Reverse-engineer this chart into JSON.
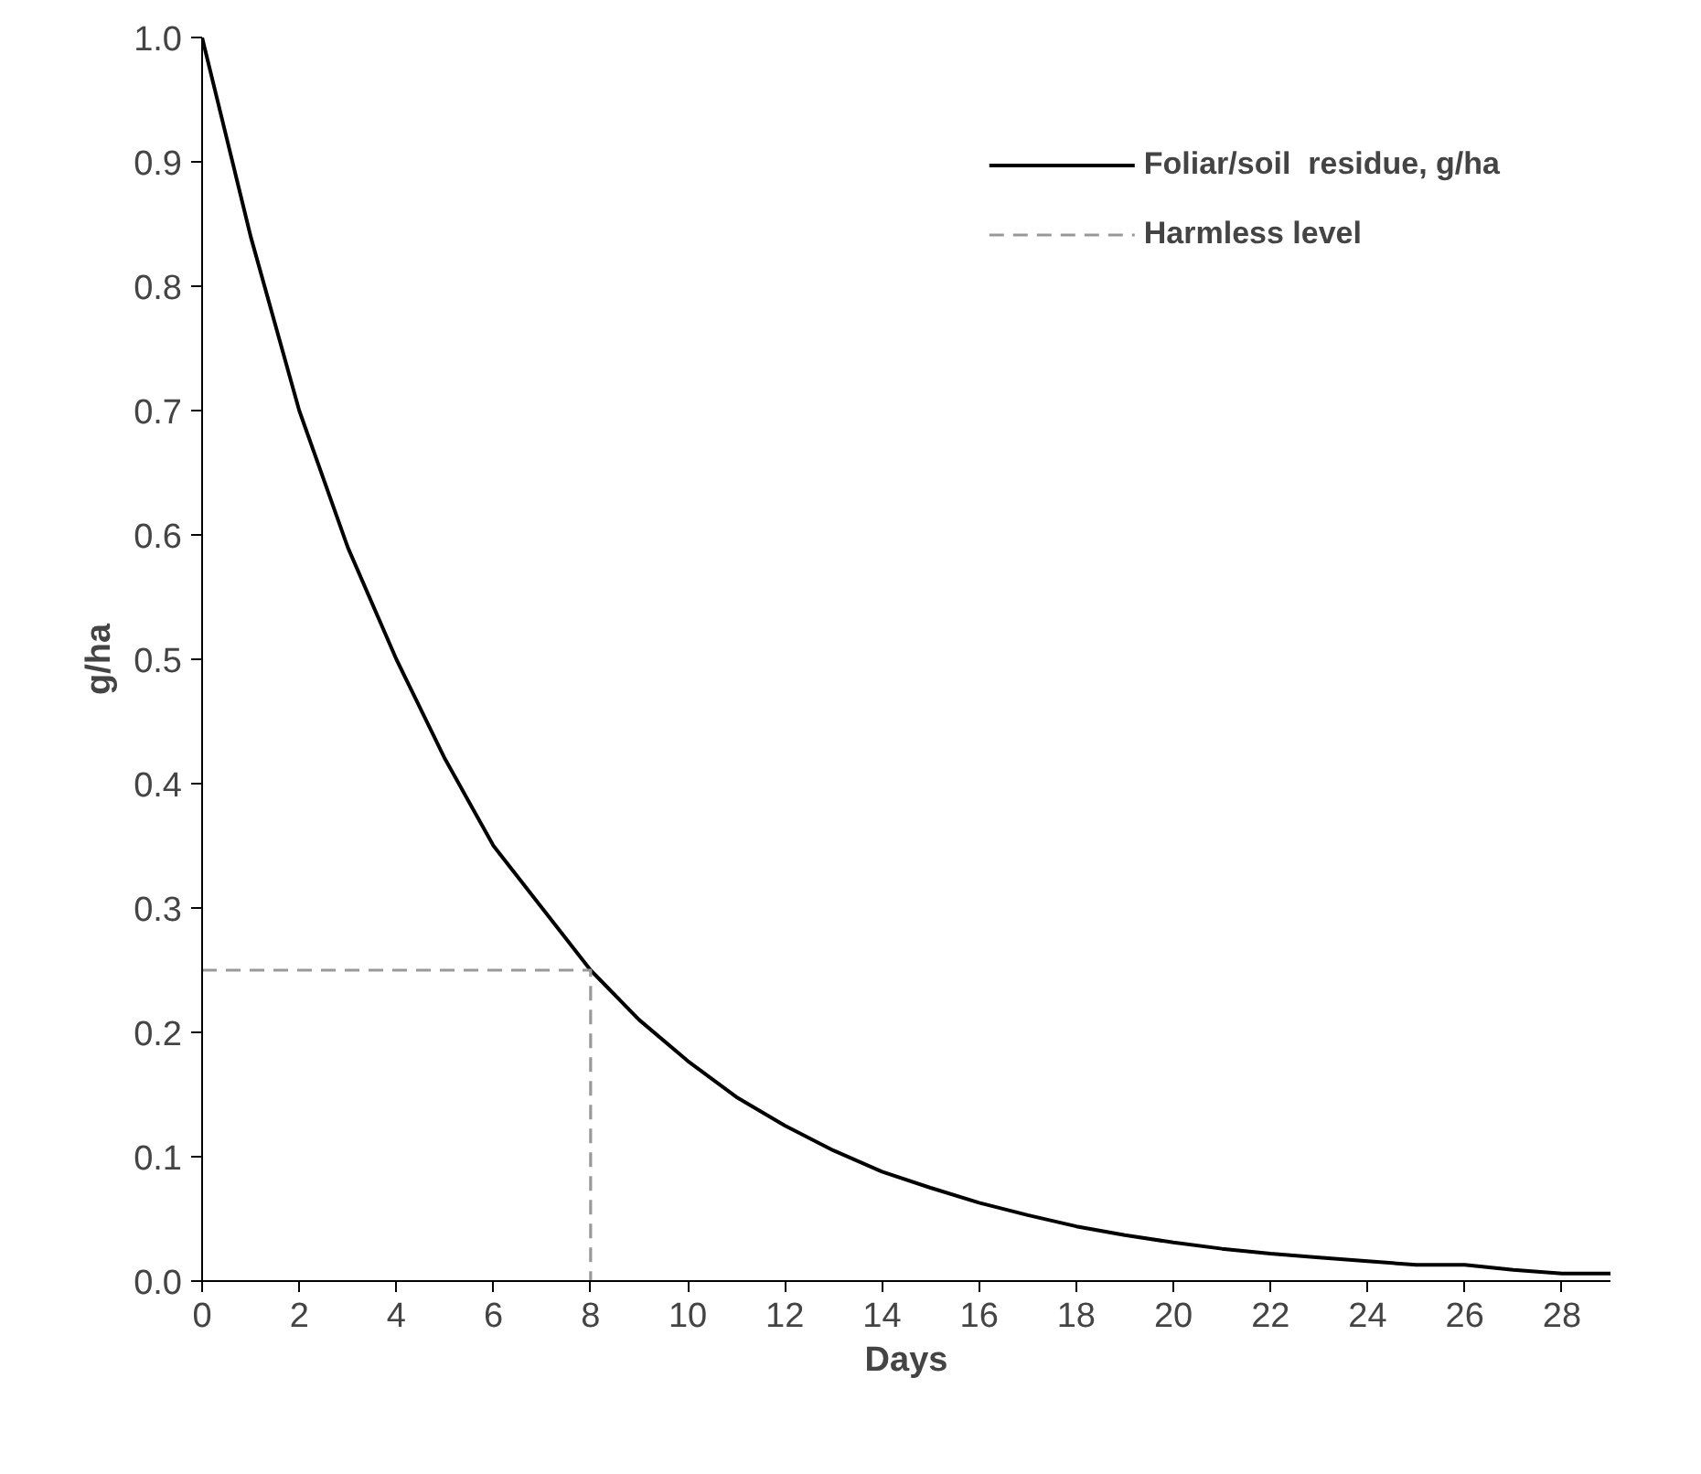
{
  "chart_data": {
    "type": "line",
    "xlabel": "Days",
    "ylabel": "g/ha",
    "xlim": [
      0,
      29
    ],
    "ylim": [
      0,
      1
    ],
    "xticks": [
      0,
      2,
      4,
      6,
      8,
      10,
      12,
      14,
      16,
      18,
      20,
      22,
      24,
      26,
      28
    ],
    "yticks": [
      {
        "value": 0,
        "label": "0.0"
      },
      {
        "value": 0.1,
        "label": "0.1"
      },
      {
        "value": 0.2,
        "label": "0.2"
      },
      {
        "value": 0.3,
        "label": "0.3"
      },
      {
        "value": 0.4,
        "label": "0.4"
      },
      {
        "value": 0.5,
        "label": "0.5"
      },
      {
        "value": 0.6,
        "label": "0.6"
      },
      {
        "value": 0.7,
        "label": "0.7"
      },
      {
        "value": 0.8,
        "label": "0.8"
      },
      {
        "value": 0.9,
        "label": "0.9"
      },
      {
        "value": 1,
        "label": "1.0"
      }
    ],
    "grid": false,
    "legend": "top right",
    "marker": "none",
    "series": [
      {
        "name": "Foliar/soil  residue, g/ha",
        "color": "#000000",
        "line_style": "solid",
        "x": [
          0,
          1,
          2,
          3,
          4,
          5,
          6,
          7,
          8,
          9,
          10,
          11,
          12,
          13,
          14,
          15,
          16,
          17,
          18,
          19,
          20,
          21,
          22,
          23,
          24,
          25,
          26,
          27,
          28,
          29
        ],
        "values": [
          1.0,
          0.84,
          0.7,
          0.59,
          0.5,
          0.42,
          0.35,
          0.3,
          0.25,
          0.21,
          0.177,
          0.148,
          0.125,
          0.105,
          0.088,
          0.075,
          0.063,
          0.053,
          0.044,
          0.037,
          0.031,
          0.026,
          0.022,
          0.019,
          0.016,
          0.013,
          0.013,
          0.009,
          0.006,
          0.006
        ]
      },
      {
        "name": "Harmless level",
        "color": "#999999",
        "line_style": "dashed",
        "x": [
          0,
          8,
          8
        ],
        "values": [
          0.25,
          0.25,
          0
        ]
      }
    ]
  }
}
